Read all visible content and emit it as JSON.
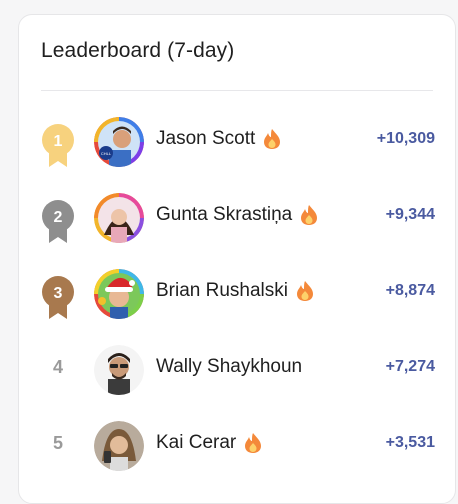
{
  "leaderboard": {
    "title": "Leaderboard (7-day)",
    "entries": [
      {
        "rank": "1",
        "name": "Jason Scott",
        "score": "+10,309",
        "fire": true,
        "medal": "gold"
      },
      {
        "rank": "2",
        "name": "Gunta Skrastiņa",
        "score": "+9,344",
        "fire": true,
        "medal": "silver"
      },
      {
        "rank": "3",
        "name": "Brian Rushalski",
        "score": "+8,874",
        "fire": true,
        "medal": "bronze"
      },
      {
        "rank": "4",
        "name": "Wally Shaykhoun",
        "score": "+7,274",
        "fire": false,
        "medal": "none"
      },
      {
        "rank": "5",
        "name": "Kai Cerar",
        "score": "+3,531",
        "fire": true,
        "medal": "none"
      }
    ]
  },
  "colors": {
    "gold": "#f7d27e",
    "silver": "#8e8e8e",
    "bronze": "#a8794e",
    "score": "#4a5aa0",
    "fire_outer": "#f4893a",
    "fire_inner": "#fdd16a"
  },
  "icons": {
    "medal": "ribbon-medal-icon",
    "fire": "fire-icon"
  }
}
